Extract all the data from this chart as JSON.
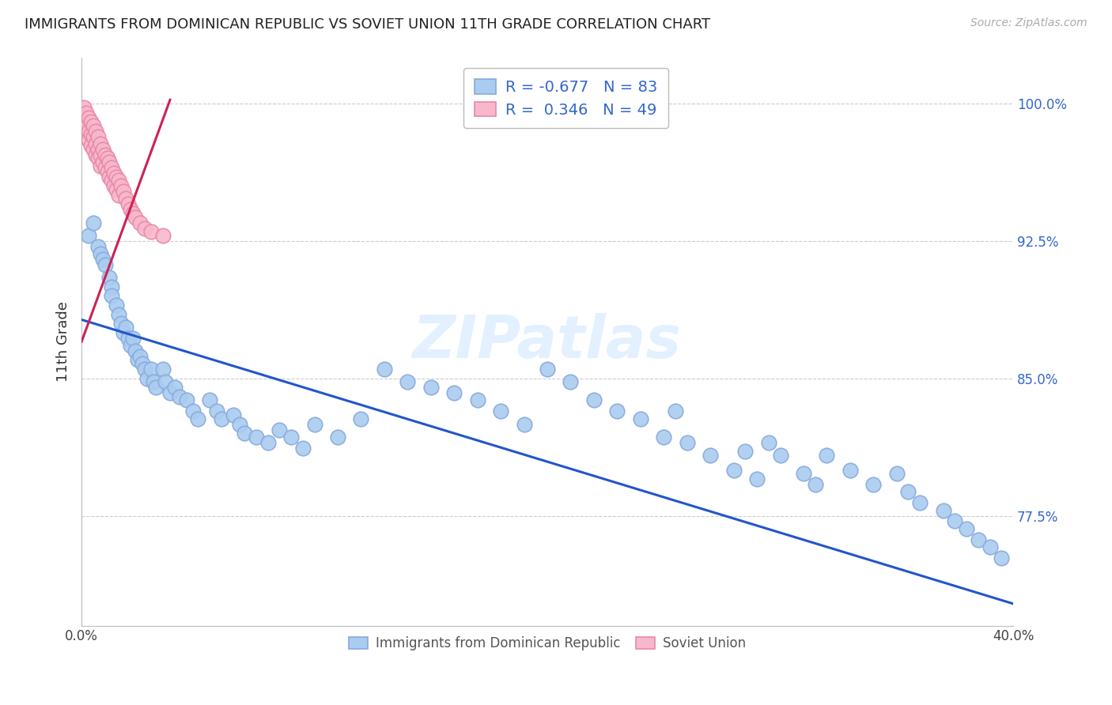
{
  "title": "IMMIGRANTS FROM DOMINICAN REPUBLIC VS SOVIET UNION 11TH GRADE CORRELATION CHART",
  "source": "Source: ZipAtlas.com",
  "ylabel": "11th Grade",
  "blue_R": -0.677,
  "blue_N": 83,
  "pink_R": 0.346,
  "pink_N": 49,
  "blue_color": "#aaccf0",
  "blue_edge": "#88aadd",
  "pink_color": "#f8b8cc",
  "pink_edge": "#e888a8",
  "blue_line_color": "#2255cc",
  "pink_line_color": "#cc2255",
  "xlim": [
    0.0,
    0.4
  ],
  "ylim": [
    0.715,
    1.025
  ],
  "ytick_positions": [
    0.775,
    0.85,
    0.925,
    1.0
  ],
  "ytick_labels": [
    "77.5%",
    "85.0%",
    "92.5%",
    "100.0%"
  ],
  "xtick_positions": [
    0.0,
    0.08,
    0.16,
    0.24,
    0.32,
    0.4
  ],
  "xtick_labels": [
    "0.0%",
    "",
    "",
    "",
    "",
    "40.0%"
  ],
  "grid_color": "#cccccc",
  "watermark": "ZIPatlas",
  "blue_scatter_x": [
    0.003,
    0.005,
    0.007,
    0.008,
    0.009,
    0.01,
    0.012,
    0.013,
    0.013,
    0.015,
    0.016,
    0.017,
    0.018,
    0.019,
    0.02,
    0.021,
    0.022,
    0.023,
    0.024,
    0.025,
    0.026,
    0.027,
    0.028,
    0.03,
    0.031,
    0.032,
    0.035,
    0.036,
    0.038,
    0.04,
    0.042,
    0.045,
    0.048,
    0.05,
    0.055,
    0.058,
    0.06,
    0.065,
    0.068,
    0.07,
    0.075,
    0.08,
    0.085,
    0.09,
    0.095,
    0.1,
    0.11,
    0.12,
    0.13,
    0.14,
    0.15,
    0.16,
    0.17,
    0.18,
    0.19,
    0.2,
    0.21,
    0.22,
    0.23,
    0.24,
    0.25,
    0.255,
    0.26,
    0.27,
    0.28,
    0.285,
    0.29,
    0.295,
    0.3,
    0.31,
    0.315,
    0.32,
    0.33,
    0.34,
    0.35,
    0.355,
    0.36,
    0.37,
    0.375,
    0.38,
    0.385,
    0.39,
    0.395
  ],
  "blue_scatter_y": [
    0.928,
    0.935,
    0.922,
    0.918,
    0.915,
    0.912,
    0.905,
    0.9,
    0.895,
    0.89,
    0.885,
    0.88,
    0.875,
    0.878,
    0.872,
    0.868,
    0.872,
    0.865,
    0.86,
    0.862,
    0.858,
    0.855,
    0.85,
    0.855,
    0.848,
    0.845,
    0.855,
    0.848,
    0.842,
    0.845,
    0.84,
    0.838,
    0.832,
    0.828,
    0.838,
    0.832,
    0.828,
    0.83,
    0.825,
    0.82,
    0.818,
    0.815,
    0.822,
    0.818,
    0.812,
    0.825,
    0.818,
    0.828,
    0.855,
    0.848,
    0.845,
    0.842,
    0.838,
    0.832,
    0.825,
    0.855,
    0.848,
    0.838,
    0.832,
    0.828,
    0.818,
    0.832,
    0.815,
    0.808,
    0.8,
    0.81,
    0.795,
    0.815,
    0.808,
    0.798,
    0.792,
    0.808,
    0.8,
    0.792,
    0.798,
    0.788,
    0.782,
    0.778,
    0.772,
    0.768,
    0.762,
    0.758,
    0.752
  ],
  "pink_scatter_x": [
    0.001,
    0.001,
    0.002,
    0.002,
    0.003,
    0.003,
    0.003,
    0.004,
    0.004,
    0.004,
    0.005,
    0.005,
    0.005,
    0.006,
    0.006,
    0.006,
    0.007,
    0.007,
    0.007,
    0.008,
    0.008,
    0.008,
    0.009,
    0.009,
    0.01,
    0.01,
    0.011,
    0.011,
    0.012,
    0.012,
    0.013,
    0.013,
    0.014,
    0.014,
    0.015,
    0.015,
    0.016,
    0.016,
    0.017,
    0.018,
    0.019,
    0.02,
    0.021,
    0.022,
    0.023,
    0.025,
    0.027,
    0.03,
    0.035
  ],
  "pink_scatter_y": [
    0.998,
    0.992,
    0.995,
    0.988,
    0.992,
    0.985,
    0.98,
    0.99,
    0.983,
    0.977,
    0.988,
    0.982,
    0.975,
    0.985,
    0.978,
    0.972,
    0.982,
    0.975,
    0.97,
    0.978,
    0.972,
    0.966,
    0.975,
    0.968,
    0.972,
    0.965,
    0.97,
    0.963,
    0.968,
    0.96,
    0.965,
    0.958,
    0.962,
    0.955,
    0.96,
    0.953,
    0.958,
    0.95,
    0.955,
    0.952,
    0.948,
    0.945,
    0.942,
    0.94,
    0.938,
    0.935,
    0.932,
    0.93,
    0.928
  ],
  "blue_line_x0": 0.0,
  "blue_line_x1": 0.4,
  "blue_line_y0": 0.882,
  "blue_line_y1": 0.727,
  "pink_line_x0": 0.0,
  "pink_line_x1": 0.038,
  "pink_line_y0": 0.87,
  "pink_line_y1": 1.002
}
